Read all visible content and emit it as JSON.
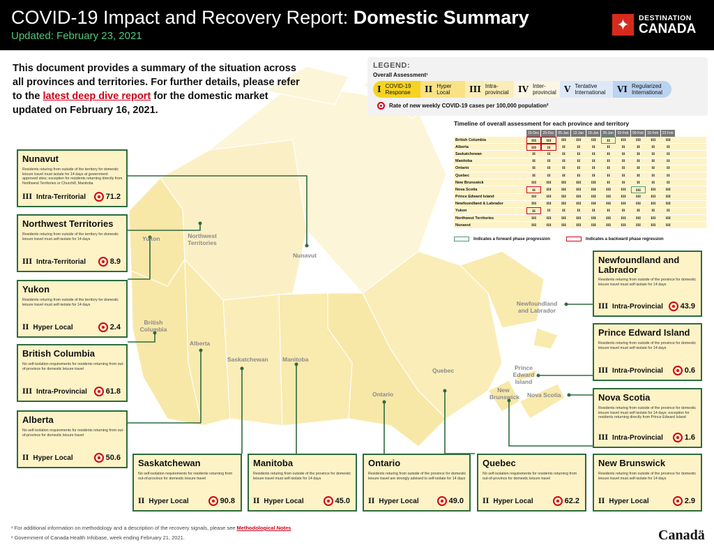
{
  "header": {
    "title_main": "COVID-19 Impact and Recovery Report: ",
    "title_bold": "Domestic Summary",
    "updated": "Updated: February 23, 2021",
    "brand_line1": "DESTINATION",
    "brand_line2": "CANADA"
  },
  "intro": {
    "text_before": "This document provides a summary of the situation across all provinces and territories. For further details, please refer to the ",
    "link": "latest deep dive report",
    "text_after": " for the domestic market updated on February 16, 2021."
  },
  "legend": {
    "title": "LEGEND:",
    "subtitle": "Overall Assessment¹",
    "phases": [
      {
        "num": "I",
        "label": "COVID-19 Response"
      },
      {
        "num": "II",
        "label": "Hyper Local"
      },
      {
        "num": "III",
        "label": "Intra-provincial"
      },
      {
        "num": "IV",
        "label": "Inter-provincial"
      },
      {
        "num": "V",
        "label": "Tentative International"
      },
      {
        "num": "VI",
        "label": "Regularized International"
      }
    ],
    "rate_label": "Rate of new weekly COVID-19 cases per 100,000 population²"
  },
  "timeline": {
    "title": "Timeline of overall assessment for each province and territory",
    "dates": [
      "15-Dec",
      "29-Dec",
      "05-Jan",
      "12-Jan",
      "19-Jan",
      "26-Jan",
      "02-Feb",
      "09-Feb",
      "16-Feb",
      "23-Feb"
    ],
    "rows": [
      {
        "prov": "British Columbia",
        "cells": [
          "III",
          "III",
          "III",
          "III",
          "III",
          "II",
          "III",
          "III",
          "III",
          "III"
        ]
      },
      {
        "prov": "Alberta",
        "cells": [
          "III",
          "II",
          "II",
          "II",
          "II",
          "II",
          "II",
          "II",
          "II",
          "II"
        ]
      },
      {
        "prov": "Saskatchewan",
        "cells": [
          "II",
          "II",
          "II",
          "II",
          "II",
          "II",
          "II",
          "II",
          "II",
          "II"
        ]
      },
      {
        "prov": "Manitoba",
        "cells": [
          "II",
          "II",
          "II",
          "II",
          "II",
          "II",
          "II",
          "II",
          "II",
          "II"
        ]
      },
      {
        "prov": "Ontario",
        "cells": [
          "II",
          "II",
          "II",
          "II",
          "II",
          "II",
          "II",
          "II",
          "II",
          "II"
        ]
      },
      {
        "prov": "Quebec",
        "cells": [
          "II",
          "II",
          "II",
          "II",
          "II",
          "II",
          "II",
          "II",
          "II",
          "II"
        ]
      },
      {
        "prov": "New Brunswick",
        "cells": [
          "III",
          "III",
          "III",
          "III",
          "III",
          "II",
          "II",
          "II",
          "II",
          "II"
        ]
      },
      {
        "prov": "Nova Scotia",
        "cells": [
          "II",
          "III",
          "III",
          "III",
          "III",
          "III",
          "III",
          "III",
          "III",
          "III"
        ]
      },
      {
        "prov": "Prince Edward Island",
        "cells": [
          "III",
          "III",
          "III",
          "III",
          "III",
          "III",
          "III",
          "III",
          "III",
          "III"
        ]
      },
      {
        "prov": "Newfoundland & Labrador",
        "cells": [
          "III",
          "III",
          "III",
          "III",
          "III",
          "III",
          "III",
          "III",
          "III",
          "III"
        ]
      },
      {
        "prov": "Yukon",
        "cells": [
          "II",
          "II",
          "II",
          "II",
          "II",
          "II",
          "II",
          "II",
          "II",
          "II"
        ]
      },
      {
        "prov": "Northwest Territories",
        "cells": [
          "III",
          "III",
          "III",
          "III",
          "III",
          "III",
          "III",
          "III",
          "III",
          "III"
        ]
      },
      {
        "prov": "Nunavut",
        "cells": [
          "III",
          "III",
          "III",
          "III",
          "III",
          "III",
          "III",
          "III",
          "III",
          "III"
        ]
      }
    ],
    "forward_label": "Indicates a forward phase progression",
    "backward_label": "Indicates a backward phase regression"
  },
  "map_labels": {
    "yukon": "Yukon",
    "nwt": "Northwest Territories",
    "nunavut": "Nunavut",
    "bc": "British Columbia",
    "alberta": "Alberta",
    "sask": "Saskatchewan",
    "manitoba": "Manitoba",
    "ontario": "Ontario",
    "quebec": "Quebec",
    "nl": "Newfoundland and Labrador",
    "pei": "Prince Edward Island",
    "ns": "Nova Scotia",
    "nb": "New Brunswick"
  },
  "cards": {
    "nunavut": {
      "name": "Nunavut",
      "desc": "Residents returing from outside of the territory for domestic leisure travel must isolate for 14 days at government approved sites; exception for residents returning directly from Northwest Territories or Churchill, Manitoba",
      "phase": "III",
      "phase_label": "Intra-Territorial",
      "rate": "71.2"
    },
    "nwt": {
      "name": "Northwest Territories",
      "desc": "Residents returing from outside of the territory for domestic leisure travel must self-isolate for 14 days",
      "phase": "III",
      "phase_label": "Intra-Territorial",
      "rate": "8.9"
    },
    "yukon": {
      "name": "Yukon",
      "desc": "Residents returing from outside of the territory for domestic leisure travel must self-isolate for 14 days",
      "phase": "II",
      "phase_label": "Hyper Local",
      "rate": "2.4"
    },
    "bc": {
      "name": "British Columbia",
      "desc": "No self-isolation requirements for residents returning from out-of-province for domestic leisure travel",
      "phase": "III",
      "phase_label": "Intra-Provincial",
      "rate": "61.8"
    },
    "alberta": {
      "name": "Alberta",
      "desc": "No self-isolation requirements for residents returning from out-of-province for domestic leisure travel",
      "phase": "II",
      "phase_label": "Hyper Local",
      "rate": "50.6"
    },
    "sask": {
      "name": "Saskatchewan",
      "desc": "No self-isolation requirements for residents returning from out-of-province for domestic leisure travel",
      "phase": "II",
      "phase_label": "Hyper Local",
      "rate": "90.8"
    },
    "manitoba": {
      "name": "Manitoba",
      "desc": "Residents returing from outside of the province for domestic leisure travel must self-isolate for 14 days",
      "phase": "II",
      "phase_label": "Hyper Local",
      "rate": "45.0"
    },
    "ontario": {
      "name": "Ontario",
      "desc": "Residents returing from outside of the province for domestic leisure travel are strongly advised to self-isolate for 14 days",
      "phase": "II",
      "phase_label": "Hyper Local",
      "rate": "49.0"
    },
    "quebec": {
      "name": "Quebec",
      "desc": "No self-isolation requirements for residents returning from out-of-province for domestic leisure travel",
      "phase": "II",
      "phase_label": "Hyper Local",
      "rate": "62.2"
    },
    "nl": {
      "name": "Newfoundland and Labrador",
      "desc": "Residents returing from outside of the province for domestic leisure travel must self-isolate for 14 days",
      "phase": "III",
      "phase_label": "Intra-Provincial",
      "rate": "43.9"
    },
    "pei": {
      "name": "Prince Edward Island",
      "desc": "Residents returing from outside of the province for domestic leisure travel must self-isolate for 14 days",
      "phase": "III",
      "phase_label": "Intra-Provincial",
      "rate": "0.6"
    },
    "ns": {
      "name": "Nova Scotia",
      "desc": "Residents returing from outside of the province for domestic leisure travel must self-isolate for 14 days; exception for residents returning directly from Prince Edward Island",
      "phase": "III",
      "phase_label": "Intra-Provincial",
      "rate": "1.6"
    },
    "nb": {
      "name": "New Brunswick",
      "desc": "Residents returing from outside of the province for domestic leisure travel must self-isolate for 14 days",
      "phase": "II",
      "phase_label": "Hyper Local",
      "rate": "2.9"
    }
  },
  "footnotes": {
    "f1_text": "¹ For additional information on methodology and a description of the recovery signals, please see ",
    "f1_link": "Methodological Notes",
    "f2": "² Government of Canada Health Infobase, week ending February 21, 2021."
  },
  "canada_wordmark": "Canadä"
}
